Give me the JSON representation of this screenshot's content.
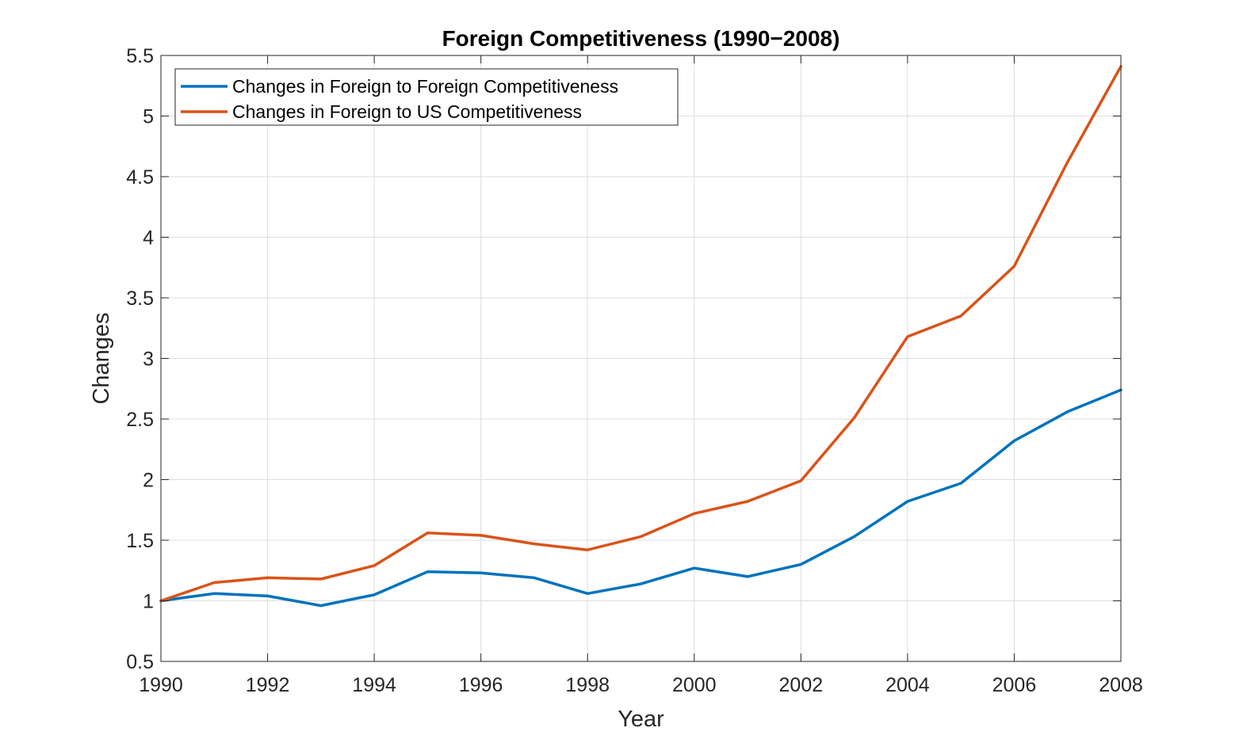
{
  "chart_data": {
    "type": "line",
    "title": "Foreign Competitiveness (1990−2008)",
    "xlabel": "Year",
    "ylabel": "Changes",
    "xlim": [
      1990,
      2008
    ],
    "ylim": [
      0.5,
      5.5
    ],
    "xticks": [
      "1990",
      "1992",
      "1994",
      "1996",
      "1998",
      "2000",
      "2002",
      "2004",
      "2006",
      "2008"
    ],
    "yticks": [
      "0.5",
      "1",
      "1.5",
      "2",
      "2.5",
      "3",
      "3.5",
      "4",
      "4.5",
      "5",
      "5.5"
    ],
    "grid": true,
    "legend_position": "top-left",
    "x": [
      1990,
      1991,
      1992,
      1993,
      1994,
      1995,
      1996,
      1997,
      1998,
      1999,
      2000,
      2001,
      2002,
      2003,
      2004,
      2005,
      2006,
      2007,
      2008
    ],
    "series": [
      {
        "name": "Changes in Foreign to Foreign Competitiveness",
        "color": "#0072BD",
        "values": [
          1.0,
          1.06,
          1.04,
          0.96,
          1.05,
          1.24,
          1.23,
          1.19,
          1.06,
          1.14,
          1.27,
          1.2,
          1.3,
          1.53,
          1.82,
          1.97,
          2.32,
          2.56,
          2.74
        ]
      },
      {
        "name": "Changes in Foreign to US Competitiveness",
        "color": "#D95319",
        "values": [
          1.0,
          1.15,
          1.19,
          1.18,
          1.29,
          1.56,
          1.54,
          1.47,
          1.42,
          1.53,
          1.72,
          1.82,
          1.99,
          2.51,
          3.18,
          3.35,
          3.76,
          4.62,
          5.41
        ]
      }
    ]
  }
}
